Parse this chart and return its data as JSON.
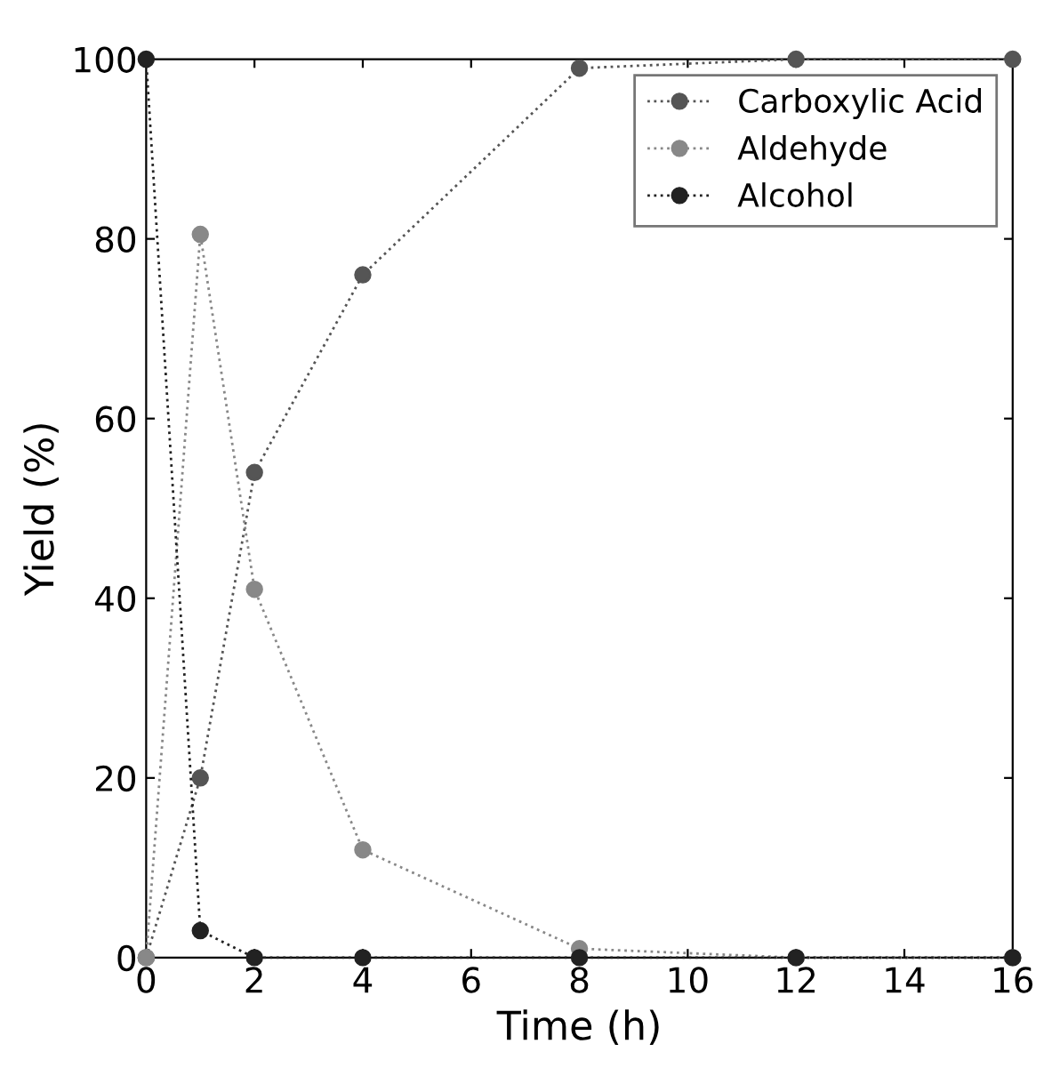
{
  "chart_data": {
    "type": "line",
    "xlabel": "Time (h)",
    "ylabel": "Yield (%)",
    "x": [
      0,
      1,
      2,
      4,
      8,
      12,
      16
    ],
    "series": [
      {
        "name": "Carboxylic Acid",
        "color": "#555555",
        "values": [
          0,
          20,
          54,
          76,
          99,
          100,
          100
        ]
      },
      {
        "name": "Aldehyde",
        "color": "#888888",
        "values": [
          0,
          80.5,
          41,
          12,
          1,
          0,
          0
        ]
      },
      {
        "name": "Alcohol",
        "color": "#222222",
        "values": [
          100,
          3,
          0,
          0,
          0,
          0,
          0
        ]
      }
    ],
    "xlim": [
      0,
      16
    ],
    "xticks": [
      0,
      2,
      4,
      6,
      8,
      10,
      12,
      14,
      16
    ],
    "ylim": [
      0,
      100
    ],
    "yticks": [
      0,
      20,
      40,
      60,
      80,
      100
    ],
    "grid": false,
    "legend": "top right",
    "marker": "circle",
    "line_style": "dotted"
  }
}
